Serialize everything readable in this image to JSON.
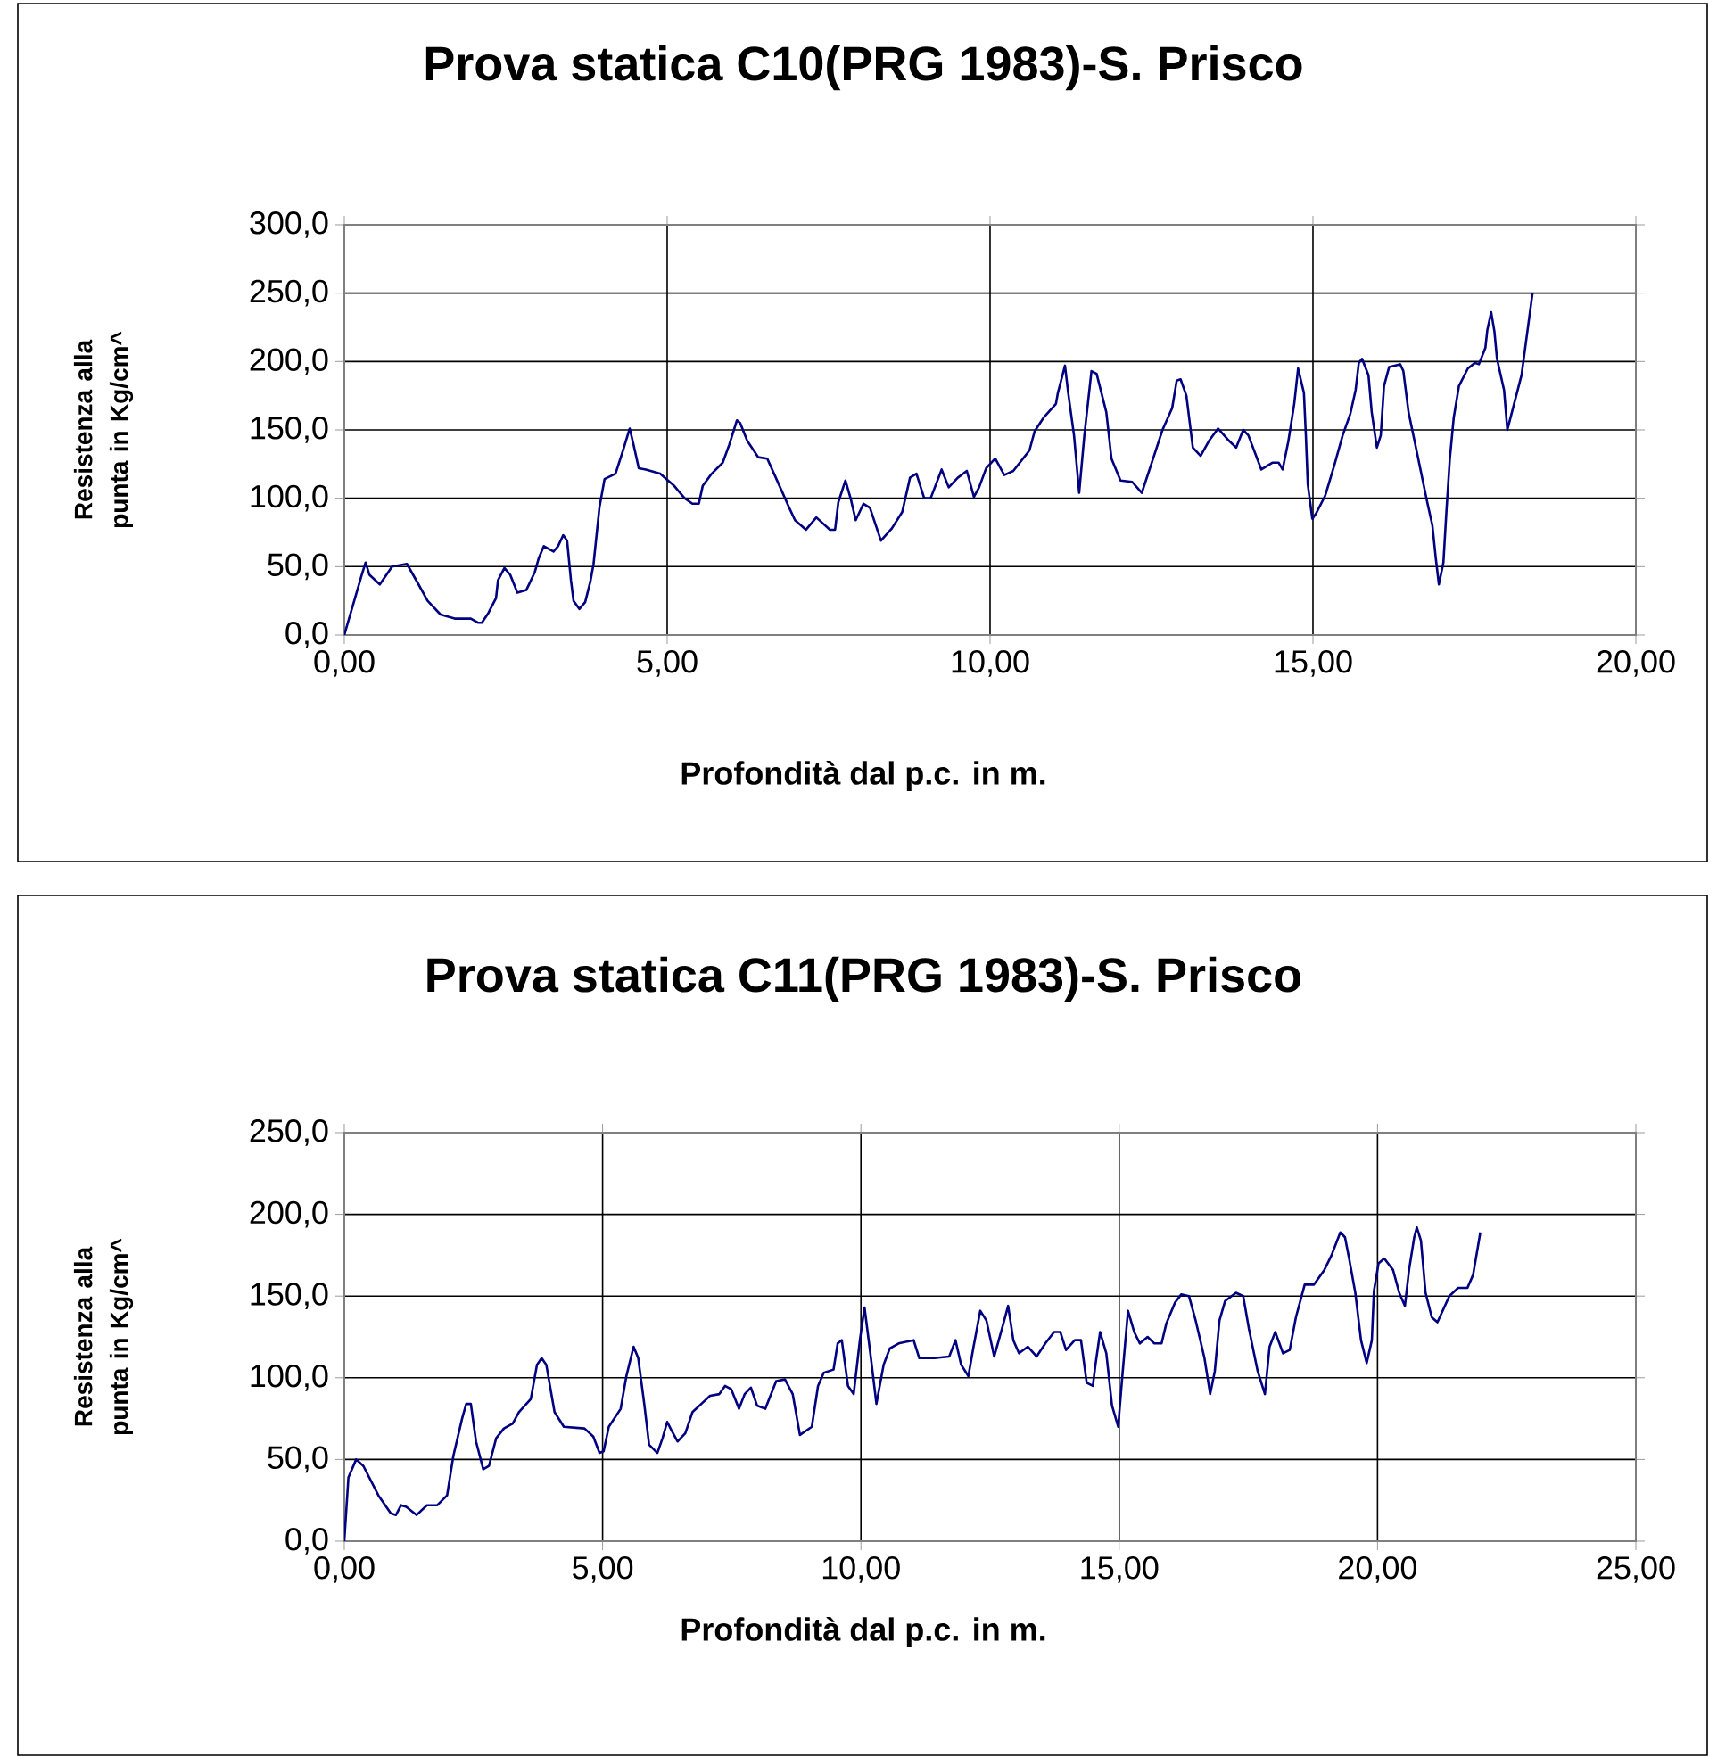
{
  "chart_data": [
    {
      "type": "line",
      "title": "Prova statica C10(PRG 1983)-S. Prisco",
      "xlabel": "Profondità dal p.c. in m.",
      "ylabel": "Resistenza alla punta in Kg/cm^",
      "color": "#000080",
      "grid": true,
      "xlim": [
        0,
        20
      ],
      "xticks": [
        {
          "value": 0,
          "label": "0,00"
        },
        {
          "value": 5,
          "label": "5,00"
        },
        {
          "value": 10,
          "label": "10,00"
        },
        {
          "value": 15,
          "label": "15,00"
        },
        {
          "value": 20,
          "label": "20,00"
        }
      ],
      "ylim": [
        0,
        300
      ],
      "yticks": [
        {
          "value": 0,
          "label": "0,0"
        },
        {
          "value": 50,
          "label": "50,0"
        },
        {
          "value": 100,
          "label": "100,0"
        },
        {
          "value": 150,
          "label": "150,0"
        },
        {
          "value": 200,
          "label": "200,0"
        },
        {
          "value": 250,
          "label": "250,0"
        },
        {
          "value": 300,
          "label": "300,0"
        }
      ],
      "x": [
        0,
        0.27,
        0.33,
        0.39,
        0.55,
        0.74,
        0.97,
        1.15,
        1.29,
        1.49,
        1.71,
        1.96,
        2.07,
        2.13,
        2.23,
        2.35,
        2.38,
        2.48,
        2.57,
        2.68,
        2.82,
        2.95,
        3.01,
        3.09,
        3.24,
        3.31,
        3.39,
        3.45,
        3.51,
        3.55,
        3.64,
        3.73,
        3.81,
        3.86,
        3.95,
        4.03,
        4.2,
        4.31,
        4.42,
        4.48,
        4.56,
        4.67,
        4.89,
        5.11,
        5.27,
        5.39,
        5.49,
        5.55,
        5.69,
        5.86,
        5.96,
        6.08,
        6.13,
        6.24,
        6.41,
        6.55,
        6.74,
        6.9,
        6.98,
        7.15,
        7.31,
        7.52,
        7.6,
        7.65,
        7.76,
        7.84,
        7.92,
        8.04,
        8.14,
        8.31,
        8.48,
        8.64,
        8.76,
        8.86,
        8.98,
        9.08,
        9.25,
        9.36,
        9.5,
        9.64,
        9.75,
        9.83,
        9.94,
        10.08,
        10.22,
        10.36,
        10.61,
        10.69,
        10.83,
        11.02,
        11.05,
        11.16,
        11.21,
        11.3,
        11.38,
        11.46,
        11.57,
        11.65,
        11.8,
        11.88,
        12.02,
        12.2,
        12.35,
        12.49,
        12.67,
        12.82,
        12.89,
        12.95,
        13.04,
        13.14,
        13.26,
        13.39,
        13.53,
        13.68,
        13.81,
        13.92,
        14.0,
        14.2,
        14.37,
        14.47,
        14.53,
        14.62,
        14.71,
        14.77,
        14.86,
        14.89,
        14.92,
        14.99,
        15.05,
        15.19,
        15.33,
        15.46,
        15.58,
        15.66,
        15.71,
        15.76,
        15.86,
        15.91,
        15.99,
        16.05,
        16.1,
        16.18,
        16.35,
        16.4,
        16.48,
        16.63,
        16.77,
        16.85,
        16.9,
        16.95,
        17.02,
        17.07,
        17.12,
        17.18,
        17.26,
        17.4,
        17.51,
        17.57,
        17.67,
        17.7,
        17.76,
        17.81,
        17.85,
        17.96,
        18.01,
        18.06,
        18.23,
        18.4
      ],
      "values": [
        0,
        44,
        53,
        44,
        37,
        50,
        52,
        37,
        25,
        15,
        12,
        12,
        9,
        9,
        16,
        27,
        40,
        49,
        44,
        31,
        33,
        46,
        56,
        65,
        61,
        65,
        73,
        69,
        40,
        25,
        19,
        24,
        39,
        52,
        93,
        114,
        118,
        134,
        151,
        139,
        122,
        121,
        118,
        109,
        100,
        96,
        96,
        109,
        118,
        126,
        139,
        157,
        155,
        142,
        130,
        129,
        109,
        92,
        84,
        77,
        86,
        77,
        77,
        97,
        113,
        100,
        84,
        96,
        93,
        69,
        78,
        90,
        115,
        118,
        100,
        100,
        121,
        108,
        115,
        120,
        101,
        108,
        122,
        129,
        117,
        120,
        135,
        149,
        159,
        169,
        177,
        197,
        177,
        146,
        104,
        146,
        193,
        191,
        163,
        129,
        113,
        112,
        104,
        124,
        150,
        166,
        186,
        187,
        175,
        137,
        131,
        142,
        151,
        143,
        137,
        150,
        146,
        121,
        126,
        126,
        121,
        142,
        169,
        195,
        177,
        146,
        110,
        85,
        89,
        102,
        124,
        146,
        162,
        179,
        199,
        202,
        190,
        163,
        137,
        146,
        182,
        196,
        198,
        193,
        163,
        129,
        97,
        80,
        57,
        37,
        53,
        93,
        129,
        159,
        182,
        195,
        199,
        198,
        210,
        223,
        236,
        222,
        202,
        179,
        150,
        159,
        190,
        250
      ]
    },
    {
      "type": "line",
      "title": "Prova statica C11(PRG 1983)-S. Prisco",
      "xlabel": "Profondità dal p.c. in m.",
      "ylabel": "Resistenza alla punta in Kg/cm^",
      "color": "#000080",
      "grid": true,
      "xlim": [
        0,
        25
      ],
      "xticks": [
        {
          "value": 0,
          "label": "0,00"
        },
        {
          "value": 5,
          "label": "5,00"
        },
        {
          "value": 10,
          "label": "10,00"
        },
        {
          "value": 15,
          "label": "15,00"
        },
        {
          "value": 20,
          "label": "20,00"
        },
        {
          "value": 25,
          "label": "25,00"
        }
      ],
      "ylim": [
        0,
        250
      ],
      "yticks": [
        {
          "value": 0,
          "label": "0,0"
        },
        {
          "value": 50,
          "label": "50,0"
        },
        {
          "value": 100,
          "label": "100,0"
        },
        {
          "value": 150,
          "label": "150,0"
        },
        {
          "value": 200,
          "label": "200,0"
        },
        {
          "value": 250,
          "label": "250,0"
        }
      ],
      "x": [
        0,
        0.08,
        0.23,
        0.37,
        0.66,
        0.9,
        1.0,
        1.1,
        1.2,
        1.4,
        1.6,
        1.8,
        1.99,
        2.11,
        2.28,
        2.36,
        2.45,
        2.55,
        2.69,
        2.8,
        2.94,
        3.09,
        3.26,
        3.38,
        3.61,
        3.73,
        3.82,
        3.91,
        4.07,
        4.25,
        4.65,
        4.82,
        4.94,
        5.02,
        5.12,
        5.35,
        5.46,
        5.6,
        5.69,
        5.81,
        5.9,
        6.06,
        6.16,
        6.25,
        6.33,
        6.45,
        6.6,
        6.74,
        6.91,
        7.08,
        7.26,
        7.37,
        7.49,
        7.64,
        7.75,
        7.87,
        7.99,
        8.15,
        8.36,
        8.53,
        8.68,
        8.82,
        9.05,
        9.17,
        9.28,
        9.47,
        9.55,
        9.63,
        9.75,
        9.86,
        9.98,
        10.07,
        10.19,
        10.3,
        10.44,
        10.56,
        10.73,
        11.02,
        11.13,
        11.42,
        11.71,
        11.83,
        11.94,
        12.08,
        12.18,
        12.31,
        12.43,
        12.58,
        12.73,
        12.85,
        12.95,
        13.06,
        13.23,
        13.4,
        13.57,
        13.74,
        13.86,
        13.97,
        14.14,
        14.26,
        14.37,
        14.49,
        14.54,
        14.63,
        14.75,
        14.86,
        14.98,
        15.06,
        15.17,
        15.29,
        15.4,
        15.55,
        15.68,
        15.82,
        15.91,
        16.08,
        16.2,
        16.35,
        16.48,
        16.65,
        16.76,
        16.85,
        16.94,
        17.05,
        17.26,
        17.4,
        17.51,
        17.68,
        17.82,
        17.91,
        18.02,
        18.17,
        18.3,
        18.42,
        18.59,
        18.77,
        18.97,
        19.11,
        19.28,
        19.37,
        19.45,
        19.57,
        19.68,
        19.79,
        19.89,
        19.93,
        20.02,
        20.13,
        20.3,
        20.42,
        20.53,
        20.61,
        20.71,
        20.76,
        20.84,
        20.93,
        21.05,
        21.16,
        21.39,
        21.56,
        21.74,
        21.85,
        21.99
      ],
      "values": [
        0,
        39,
        50,
        46,
        28,
        17,
        16,
        22,
        21,
        16,
        22,
        22,
        28,
        52,
        75,
        84,
        84,
        61,
        44,
        46,
        63,
        69,
        72,
        79,
        87,
        108,
        112,
        108,
        79,
        70,
        69,
        64,
        54,
        55,
        70,
        81,
        101,
        119,
        112,
        83,
        59,
        54,
        63,
        73,
        68,
        61,
        66,
        79,
        84,
        89,
        90,
        95,
        93,
        81,
        90,
        94,
        83,
        81,
        98,
        99,
        90,
        65,
        70,
        95,
        103,
        105,
        121,
        123,
        95,
        90,
        123,
        143,
        113,
        84,
        108,
        118,
        121,
        123,
        112,
        112,
        113,
        123,
        108,
        101,
        119,
        141,
        135,
        113,
        130,
        144,
        123,
        115,
        119,
        113,
        121,
        128,
        128,
        117,
        123,
        123,
        97,
        95,
        108,
        128,
        115,
        83,
        70,
        101,
        141,
        128,
        121,
        125,
        121,
        121,
        133,
        146,
        151,
        150,
        135,
        112,
        90,
        104,
        135,
        147,
        152,
        150,
        130,
        104,
        90,
        119,
        128,
        115,
        117,
        137,
        157,
        157,
        166,
        175,
        189,
        186,
        173,
        152,
        123,
        109,
        123,
        153,
        170,
        173,
        166,
        152,
        144,
        166,
        186,
        192,
        184,
        152,
        137,
        134,
        150,
        155,
        155,
        163,
        189
      ]
    }
  ]
}
